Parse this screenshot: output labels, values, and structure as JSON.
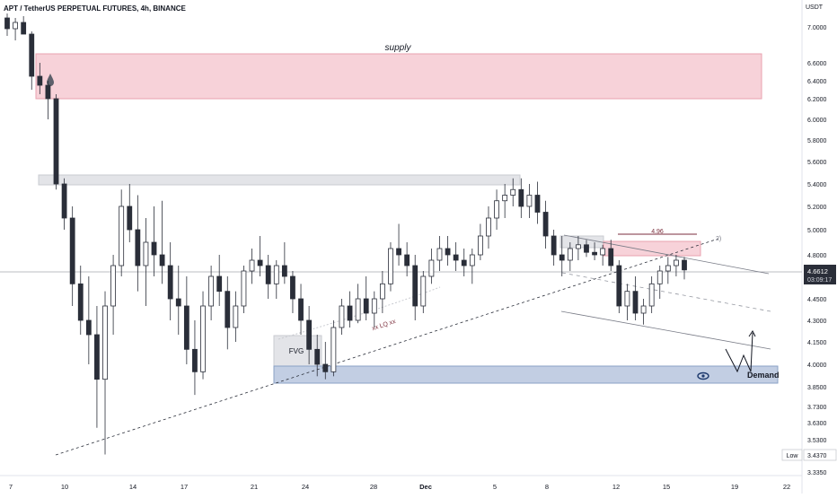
{
  "header": {
    "symbol_title": "APT / TetherUS PERPETUAL FUTURES, 4h, BINANCE",
    "currency": "USDT"
  },
  "price_axis": {
    "ticks": [
      "7.0000",
      "6.6000",
      "6.4000",
      "6.2000",
      "6.0000",
      "5.8000",
      "5.6000",
      "5.4000",
      "5.2000",
      "5.0000",
      "4.8000",
      "4.6000",
      "4.4500",
      "4.3000",
      "4.1500",
      "4.0000",
      "3.8500",
      "3.7300",
      "3.6300",
      "3.5300",
      "3.4370",
      "3.3350"
    ],
    "tick_values": [
      7.0,
      6.6,
      6.4,
      6.2,
      6.0,
      5.8,
      5.6,
      5.4,
      5.2,
      5.0,
      4.8,
      4.6,
      4.45,
      4.3,
      4.15,
      4.0,
      3.85,
      3.73,
      3.63,
      3.53,
      3.437,
      3.335
    ],
    "last_price": "4.6612",
    "countdown": "03:09:17",
    "low_label": "Low",
    "low_value": "3.4370",
    "last_price_color": "#2a2e39"
  },
  "time_axis": {
    "labels": [
      "7",
      "10",
      "14",
      "17",
      "21",
      "24",
      "28",
      "Dec",
      "5",
      "8",
      "12",
      "15",
      "19",
      "22"
    ]
  },
  "annotations": {
    "supply": "supply",
    "fvg": "FVG",
    "demand": "Demand",
    "liq": "xx LQ xx",
    "level_496": "4.96",
    "channel_marker": "2)"
  },
  "chart_data": {
    "type": "candlestick",
    "title": "APT / TetherUS PERPETUAL FUTURES, 4h, BINANCE",
    "x_ticks": [
      "7",
      "10",
      "14",
      "17",
      "21",
      "24",
      "28",
      "Dec",
      "5",
      "8",
      "12",
      "15",
      "19",
      "22"
    ],
    "y_ticks": [
      7.0,
      6.6,
      6.4,
      6.2,
      6.0,
      5.8,
      5.6,
      5.4,
      5.2,
      5.0,
      4.8,
      4.6,
      4.45,
      4.3,
      4.15,
      4.0,
      3.85,
      3.73,
      3.63,
      3.53,
      3.437,
      3.335
    ],
    "ylabel": "USDT",
    "last_price": 4.6612,
    "low": 3.437,
    "zones": [
      {
        "label": "supply",
        "low": 6.2,
        "high": 6.7,
        "color": "#f4c7cf"
      },
      {
        "label": "",
        "low": 5.4,
        "high": 5.5,
        "color": "#dcdde1"
      },
      {
        "label": "FVG",
        "low": 3.98,
        "high": 4.25,
        "color": "#dcdde1"
      },
      {
        "label": "Demand",
        "low": 3.88,
        "high": 3.98,
        "color": "#b3c2dc"
      },
      {
        "label": "",
        "low": 4.79,
        "high": 4.91,
        "color": "#f4c7cf"
      }
    ],
    "levels": [
      {
        "label": "4.96",
        "value": 4.96
      }
    ],
    "ohlc": [
      [
        7.1,
        7.15,
        6.9,
        6.98
      ],
      [
        6.98,
        7.1,
        6.85,
        7.05
      ],
      [
        7.05,
        7.12,
        6.95,
        6.92
      ],
      [
        6.92,
        6.95,
        6.3,
        6.45
      ],
      [
        6.45,
        6.6,
        6.25,
        6.35
      ],
      [
        6.35,
        6.4,
        6.0,
        6.2
      ],
      [
        6.2,
        6.25,
        5.35,
        5.4
      ],
      [
        5.4,
        5.45,
        5.0,
        5.1
      ],
      [
        5.1,
        5.2,
        4.4,
        4.55
      ],
      [
        4.55,
        4.7,
        4.2,
        4.3
      ],
      [
        4.3,
        4.6,
        4.0,
        4.2
      ],
      [
        4.2,
        4.4,
        3.6,
        3.9
      ],
      [
        3.9,
        4.5,
        3.44,
        4.4
      ],
      [
        4.4,
        4.8,
        4.2,
        4.7
      ],
      [
        4.7,
        5.35,
        4.6,
        5.2
      ],
      [
        5.2,
        5.4,
        4.9,
        5.0
      ],
      [
        5.0,
        5.3,
        4.5,
        4.7
      ],
      [
        4.7,
        5.1,
        4.4,
        4.9
      ],
      [
        4.9,
        5.2,
        4.6,
        4.8
      ],
      [
        4.8,
        5.25,
        4.55,
        4.7
      ],
      [
        4.7,
        4.9,
        4.3,
        4.45
      ],
      [
        4.45,
        4.7,
        4.2,
        4.4
      ],
      [
        4.4,
        4.6,
        4.0,
        4.1
      ],
      [
        4.1,
        4.3,
        3.8,
        3.95
      ],
      [
        3.95,
        4.5,
        3.9,
        4.4
      ],
      [
        4.4,
        4.7,
        4.3,
        4.6
      ],
      [
        4.6,
        4.8,
        4.4,
        4.5
      ],
      [
        4.5,
        4.6,
        4.1,
        4.25
      ],
      [
        4.25,
        4.5,
        4.15,
        4.4
      ],
      [
        4.4,
        4.7,
        4.35,
        4.65
      ],
      [
        4.65,
        4.85,
        4.55,
        4.75
      ],
      [
        4.75,
        4.95,
        4.6,
        4.7
      ],
      [
        4.7,
        4.8,
        4.45,
        4.55
      ],
      [
        4.55,
        4.75,
        4.45,
        4.7
      ],
      [
        4.7,
        4.9,
        4.55,
        4.6
      ],
      [
        4.6,
        4.65,
        4.35,
        4.45
      ],
      [
        4.45,
        4.55,
        4.2,
        4.3
      ],
      [
        4.3,
        4.4,
        4.0,
        4.1
      ],
      [
        4.1,
        4.2,
        3.92,
        4.0
      ],
      [
        4.0,
        4.15,
        3.9,
        3.95
      ],
      [
        3.95,
        4.3,
        3.92,
        4.25
      ],
      [
        4.25,
        4.45,
        4.2,
        4.4
      ],
      [
        4.4,
        4.5,
        4.25,
        4.3
      ],
      [
        4.3,
        4.55,
        4.28,
        4.45
      ],
      [
        4.45,
        4.6,
        4.3,
        4.35
      ],
      [
        4.35,
        4.5,
        4.25,
        4.45
      ],
      [
        4.45,
        4.65,
        4.35,
        4.55
      ],
      [
        4.55,
        4.9,
        4.5,
        4.85
      ],
      [
        4.85,
        5.05,
        4.7,
        4.8
      ],
      [
        4.8,
        4.9,
        4.6,
        4.7
      ],
      [
        4.7,
        4.8,
        4.3,
        4.4
      ],
      [
        4.4,
        4.65,
        4.35,
        4.6
      ],
      [
        4.6,
        4.85,
        4.55,
        4.75
      ],
      [
        4.75,
        4.95,
        4.65,
        4.85
      ],
      [
        4.85,
        4.95,
        4.7,
        4.8
      ],
      [
        4.8,
        4.9,
        4.65,
        4.75
      ],
      [
        4.75,
        4.85,
        4.6,
        4.7
      ],
      [
        4.7,
        4.85,
        4.55,
        4.8
      ],
      [
        4.8,
        5.05,
        4.75,
        4.95
      ],
      [
        4.95,
        5.2,
        4.85,
        5.1
      ],
      [
        5.1,
        5.35,
        5.0,
        5.25
      ],
      [
        5.25,
        5.4,
        5.1,
        5.3
      ],
      [
        5.3,
        5.45,
        5.2,
        5.35
      ],
      [
        5.35,
        5.45,
        5.1,
        5.2
      ],
      [
        5.2,
        5.4,
        5.1,
        5.3
      ],
      [
        5.3,
        5.42,
        5.05,
        5.15
      ],
      [
        5.15,
        5.25,
        4.85,
        4.95
      ],
      [
        4.95,
        5.0,
        4.7,
        4.8
      ],
      [
        4.8,
        4.95,
        4.6,
        4.75
      ],
      [
        4.75,
        4.9,
        4.65,
        4.85
      ],
      [
        4.85,
        4.95,
        4.75,
        4.88
      ],
      [
        4.88,
        4.92,
        4.78,
        4.82
      ],
      [
        4.82,
        4.9,
        4.75,
        4.8
      ],
      [
        4.8,
        4.88,
        4.7,
        4.85
      ],
      [
        4.85,
        4.92,
        4.65,
        4.7
      ],
      [
        4.7,
        4.75,
        4.35,
        4.4
      ],
      [
        4.4,
        4.55,
        4.3,
        4.5
      ],
      [
        4.5,
        4.6,
        4.3,
        4.35
      ],
      [
        4.35,
        4.45,
        4.27,
        4.4
      ],
      [
        4.4,
        4.6,
        4.35,
        4.55
      ],
      [
        4.55,
        4.7,
        4.45,
        4.65
      ],
      [
        4.65,
        4.78,
        4.55,
        4.7
      ],
      [
        4.7,
        4.8,
        4.6,
        4.75
      ],
      [
        4.75,
        4.78,
        4.58,
        4.66
      ]
    ]
  }
}
